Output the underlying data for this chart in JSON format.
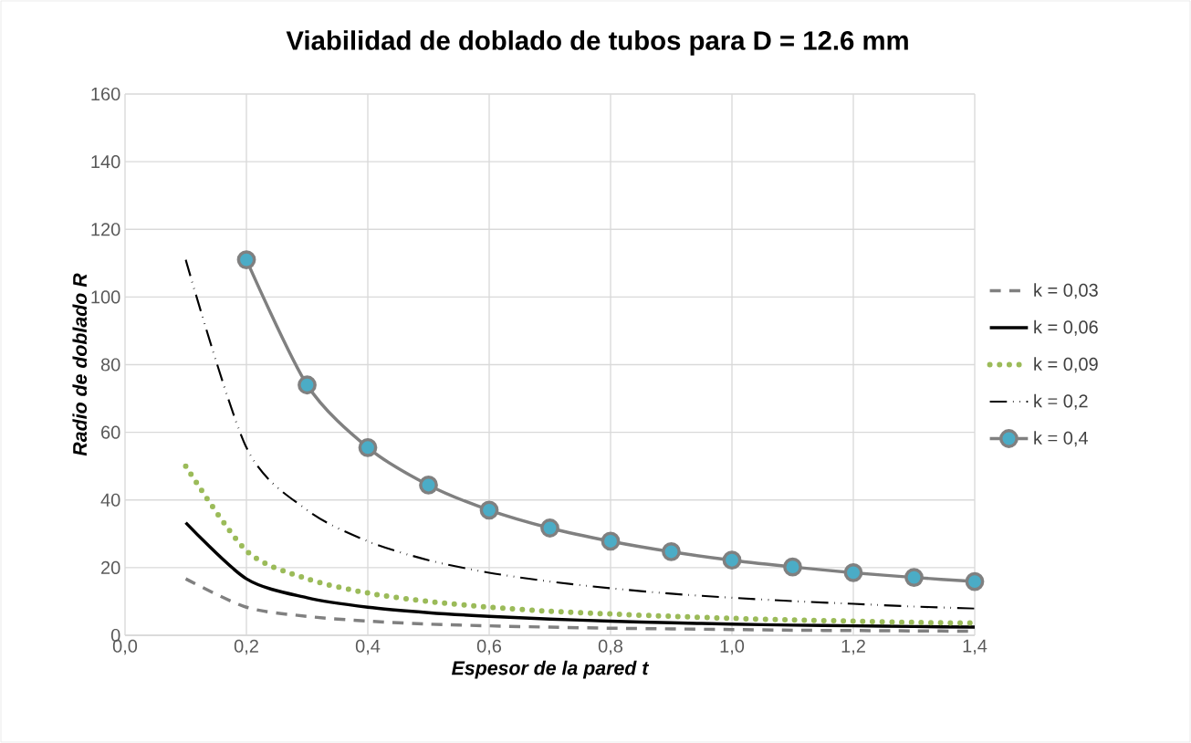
{
  "chart_data": {
    "type": "line",
    "title": "Viabilidad de doblado de tubos para D = 12.6 mm",
    "xlabel": "Espesor de la pared t",
    "ylabel": "Radio de doblado  R",
    "x": [
      0.1,
      0.2,
      0.3,
      0.4,
      0.5,
      0.6,
      0.7,
      0.8,
      0.9,
      1.0,
      1.1,
      1.2,
      1.3,
      1.4
    ],
    "xlim": [
      0,
      1.4
    ],
    "ylim": [
      0,
      160
    ],
    "xticks": [
      {
        "value": 0,
        "label": "0,0"
      },
      {
        "value": 0.2,
        "label": "0,2"
      },
      {
        "value": 0.4,
        "label": "0,4"
      },
      {
        "value": 0.6,
        "label": "0,6"
      },
      {
        "value": 0.8,
        "label": "0,8"
      },
      {
        "value": 1.0,
        "label": "1,0"
      },
      {
        "value": 1.2,
        "label": "1,2"
      },
      {
        "value": 1.4,
        "label": "1,4"
      }
    ],
    "yticks": [
      0,
      20,
      40,
      60,
      80,
      100,
      120,
      140,
      160
    ],
    "grid": true,
    "legend": "right",
    "series": [
      {
        "name": "k = 0,03",
        "color": "#808080",
        "line_style": "dashed",
        "marker": "none",
        "values": [
          16.7,
          8.3,
          5.6,
          4.2,
          3.3,
          2.8,
          2.4,
          2.1,
          1.9,
          1.7,
          1.5,
          1.4,
          1.3,
          1.2
        ]
      },
      {
        "name": "k = 0,06",
        "color": "#000000",
        "line_style": "solid",
        "marker": "none",
        "values": [
          33.3,
          16.7,
          11.1,
          8.3,
          6.7,
          5.6,
          4.8,
          4.2,
          3.7,
          3.3,
          3.0,
          2.8,
          2.6,
          2.4
        ]
      },
      {
        "name": "k = 0,09",
        "color": "#9bbb59",
        "line_style": "dotted",
        "marker": "none",
        "values": [
          50,
          25,
          16.7,
          12.5,
          10,
          8.3,
          7.1,
          6.3,
          5.6,
          5,
          4.5,
          4.2,
          3.8,
          3.6
        ]
      },
      {
        "name": "k = 0,2",
        "color": "#000000",
        "line_style": "dashdotdot",
        "marker": "none",
        "values": [
          111,
          55.5,
          37,
          27.8,
          22.2,
          18.5,
          15.9,
          13.9,
          12.3,
          11.1,
          10.1,
          9.3,
          8.5,
          7.9
        ]
      },
      {
        "name": "k = 0,4",
        "color": "#808080",
        "line_style": "solid",
        "marker": "circle",
        "colors": [
          "#4bacc6",
          "#4bacc6",
          "#4bacc6",
          "#4bacc6",
          "#4bacc6",
          "#4bacc6",
          "#4bacc6",
          "#4bacc6",
          "#4bacc6",
          "#4bacc6",
          "#4bacc6",
          "#4bacc6",
          "#4bacc6"
        ],
        "x": [
          0.2,
          0.3,
          0.4,
          0.5,
          0.6,
          0.7,
          0.8,
          0.9,
          1.0,
          1.1,
          1.2,
          1.3,
          1.4
        ],
        "values": [
          111,
          74,
          55.5,
          44.4,
          37,
          31.7,
          27.8,
          24.7,
          22.2,
          20.2,
          18.5,
          17.1,
          15.9
        ]
      }
    ]
  }
}
